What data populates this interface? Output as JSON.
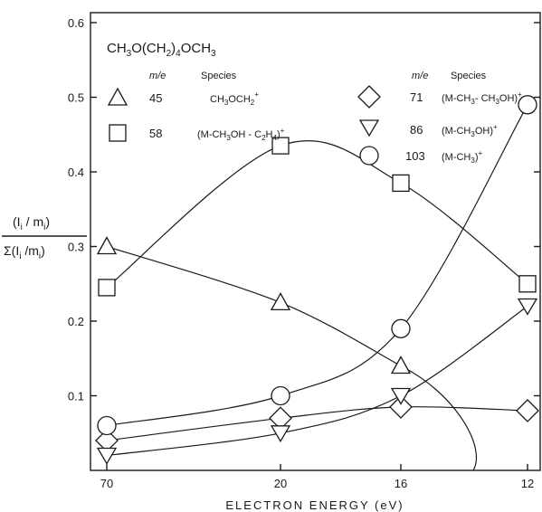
{
  "chart_data": {
    "type": "line",
    "title": "CH3O(CH2)4OCH3",
    "xlabel": "ELECTRON ENERGY (eV)",
    "ylabel": {
      "numerator": "(Ii/mi)",
      "denominator": "Σ(Ii/mi)"
    },
    "x_reversed": true,
    "xlim": [
      70,
      12
    ],
    "ylim": [
      0,
      0.65
    ],
    "x_ticks": [
      70,
      20,
      16,
      12
    ],
    "x_tick_labels": [
      "70",
      "20",
      "16",
      "12"
    ],
    "y_ticks": [
      0.1,
      0.2,
      0.3,
      0.4,
      0.5,
      0.6
    ],
    "y_tick_labels": [
      "0.1",
      "0.2",
      "0.3",
      "0.4",
      "0.5",
      "0.6"
    ],
    "legend_headers": {
      "me": "m/e",
      "species": "Species"
    },
    "series": [
      {
        "me": "45",
        "species": "CH3OCH2+",
        "marker": "triangle-up",
        "x": [
          70,
          20,
          16
        ],
        "y": [
          0.3,
          0.225,
          0.14
        ]
      },
      {
        "me": "58",
        "species": "(M-CH3OH-C2H4)+",
        "marker": "square",
        "x": [
          70,
          20,
          16,
          12
        ],
        "y": [
          0.245,
          0.435,
          0.385,
          0.25
        ]
      },
      {
        "me": "71",
        "species": "(M-CH3-CH3OH)+",
        "marker": "diamond",
        "x": [
          70,
          20,
          16,
          12
        ],
        "y": [
          0.04,
          0.07,
          0.085,
          0.08
        ]
      },
      {
        "me": "86",
        "species": "(M-CH3OH)+",
        "marker": "triangle-down",
        "x": [
          70,
          20,
          16,
          12
        ],
        "y": [
          0.02,
          0.05,
          0.1,
          0.22
        ]
      },
      {
        "me": "103",
        "species": "(M-CH3)+",
        "marker": "circle",
        "x": [
          70,
          20,
          16,
          12
        ],
        "y": [
          0.06,
          0.1,
          0.19,
          0.49
        ]
      }
    ]
  }
}
